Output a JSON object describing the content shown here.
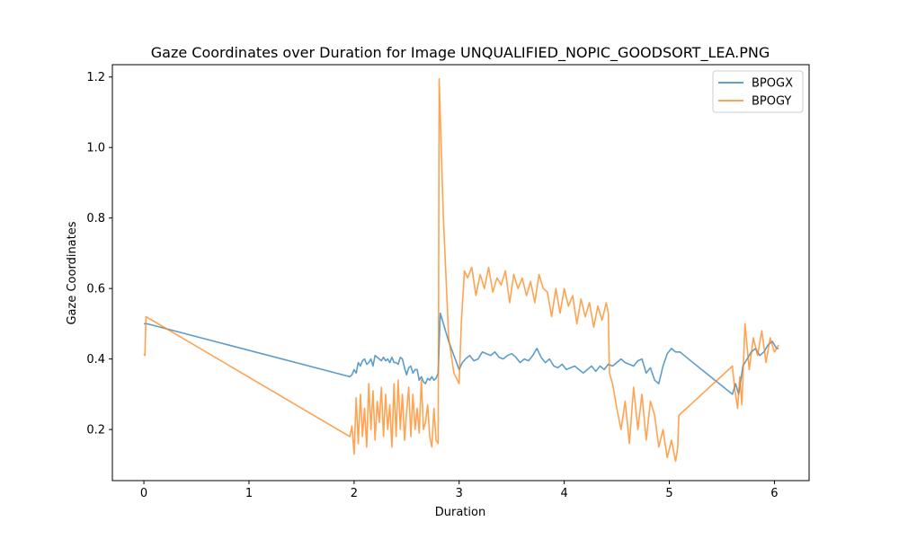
{
  "chart_data": {
    "type": "line",
    "title": "Gaze Coordinates over Duration for Image UNQUALIFIED_NOPIC_GOODSORT_LEA.PNG",
    "xlabel": "Duration",
    "ylabel": "Gaze Coordinates",
    "xlim": [
      -0.3,
      6.33
    ],
    "ylim": [
      0.055,
      1.235
    ],
    "xticks": [
      0,
      1,
      2,
      3,
      4,
      5,
      6
    ],
    "yticks": [
      0.2,
      0.4,
      0.6,
      0.8,
      1.0,
      1.2
    ],
    "xtick_labels": [
      "0",
      "1",
      "2",
      "3",
      "4",
      "5",
      "6"
    ],
    "ytick_labels": [
      "0.2",
      "0.4",
      "0.6",
      "0.8",
      "1.0",
      "1.2"
    ],
    "grid": false,
    "legend": "top-right",
    "series": [
      {
        "name": "BPOGX",
        "color": "#1f77b4",
        "x": [
          0.0,
          0.03,
          1.96,
          1.98,
          2.0,
          2.02,
          2.04,
          2.06,
          2.08,
          2.1,
          2.12,
          2.14,
          2.16,
          2.18,
          2.2,
          2.22,
          2.24,
          2.26,
          2.28,
          2.3,
          2.32,
          2.34,
          2.36,
          2.38,
          2.4,
          2.42,
          2.44,
          2.46,
          2.48,
          2.5,
          2.52,
          2.54,
          2.56,
          2.58,
          2.6,
          2.62,
          2.64,
          2.66,
          2.68,
          2.7,
          2.72,
          2.74,
          2.76,
          2.78,
          2.8,
          2.82,
          2.9,
          2.95,
          3.0,
          3.03,
          3.06,
          3.1,
          3.14,
          3.18,
          3.22,
          3.26,
          3.3,
          3.34,
          3.38,
          3.42,
          3.46,
          3.5,
          3.54,
          3.58,
          3.62,
          3.66,
          3.7,
          3.74,
          3.78,
          3.82,
          3.86,
          3.9,
          3.94,
          3.98,
          4.02,
          4.06,
          4.1,
          4.14,
          4.18,
          4.22,
          4.26,
          4.3,
          4.34,
          4.38,
          4.42,
          4.46,
          4.5,
          4.54,
          4.58,
          4.62,
          4.66,
          4.7,
          4.74,
          4.78,
          4.82,
          4.86,
          4.9,
          4.94,
          4.98,
          5.02,
          5.06,
          5.1,
          5.6,
          5.63,
          5.66,
          5.7,
          5.74,
          5.78,
          5.82,
          5.86,
          5.9,
          5.94,
          5.98,
          6.02,
          6.04
        ],
        "values": [
          0.5,
          0.5,
          0.35,
          0.355,
          0.37,
          0.36,
          0.39,
          0.38,
          0.395,
          0.4,
          0.385,
          0.39,
          0.4,
          0.38,
          0.41,
          0.405,
          0.4,
          0.395,
          0.405,
          0.395,
          0.4,
          0.39,
          0.405,
          0.39,
          0.39,
          0.385,
          0.405,
          0.4,
          0.375,
          0.355,
          0.375,
          0.38,
          0.36,
          0.37,
          0.37,
          0.34,
          0.35,
          0.335,
          0.33,
          0.345,
          0.34,
          0.35,
          0.34,
          0.345,
          0.36,
          0.53,
          0.45,
          0.41,
          0.37,
          0.39,
          0.4,
          0.41,
          0.395,
          0.4,
          0.42,
          0.415,
          0.41,
          0.42,
          0.405,
          0.4,
          0.41,
          0.415,
          0.405,
          0.39,
          0.4,
          0.395,
          0.41,
          0.43,
          0.405,
          0.39,
          0.4,
          0.38,
          0.375,
          0.385,
          0.37,
          0.375,
          0.38,
          0.37,
          0.36,
          0.37,
          0.38,
          0.365,
          0.38,
          0.37,
          0.385,
          0.38,
          0.39,
          0.4,
          0.39,
          0.385,
          0.38,
          0.395,
          0.4,
          0.36,
          0.375,
          0.34,
          0.33,
          0.38,
          0.415,
          0.43,
          0.42,
          0.42,
          0.3,
          0.33,
          0.3,
          0.38,
          0.4,
          0.42,
          0.43,
          0.41,
          0.42,
          0.44,
          0.45,
          0.43,
          0.43
        ]
      },
      {
        "name": "BPOGY",
        "color": "#ff7f0e",
        "x": [
          0.0,
          0.01,
          0.02,
          1.96,
          1.98,
          2.0,
          2.02,
          2.04,
          2.06,
          2.08,
          2.1,
          2.12,
          2.14,
          2.16,
          2.18,
          2.2,
          2.22,
          2.24,
          2.26,
          2.28,
          2.3,
          2.32,
          2.34,
          2.36,
          2.38,
          2.4,
          2.42,
          2.44,
          2.46,
          2.48,
          2.5,
          2.52,
          2.54,
          2.56,
          2.58,
          2.6,
          2.62,
          2.64,
          2.66,
          2.68,
          2.7,
          2.72,
          2.74,
          2.76,
          2.78,
          2.8,
          2.81,
          2.85,
          2.9,
          2.95,
          3.0,
          3.02,
          3.05,
          3.08,
          3.12,
          3.16,
          3.2,
          3.24,
          3.28,
          3.32,
          3.36,
          3.4,
          3.44,
          3.48,
          3.52,
          3.56,
          3.6,
          3.64,
          3.68,
          3.72,
          3.76,
          3.8,
          3.84,
          3.88,
          3.92,
          3.96,
          4.0,
          4.04,
          4.08,
          4.12,
          4.16,
          4.2,
          4.24,
          4.28,
          4.32,
          4.36,
          4.4,
          4.42,
          4.43,
          4.46,
          4.5,
          4.54,
          4.58,
          4.62,
          4.66,
          4.7,
          4.74,
          4.78,
          4.82,
          4.86,
          4.9,
          4.94,
          4.98,
          5.02,
          5.06,
          5.08,
          5.09,
          5.6,
          5.62,
          5.65,
          5.67,
          5.69,
          5.72,
          5.76,
          5.8,
          5.84,
          5.88,
          5.92,
          5.96,
          6.0,
          6.04
        ],
        "values": [
          0.415,
          0.41,
          0.52,
          0.18,
          0.21,
          0.13,
          0.29,
          0.16,
          0.3,
          0.18,
          0.26,
          0.15,
          0.33,
          0.2,
          0.31,
          0.17,
          0.28,
          0.22,
          0.32,
          0.18,
          0.3,
          0.2,
          0.27,
          0.15,
          0.33,
          0.18,
          0.34,
          0.2,
          0.3,
          0.17,
          0.25,
          0.32,
          0.18,
          0.3,
          0.2,
          0.26,
          0.19,
          0.34,
          0.2,
          0.22,
          0.27,
          0.18,
          0.15,
          0.26,
          0.17,
          0.16,
          1.195,
          0.8,
          0.46,
          0.36,
          0.33,
          0.5,
          0.65,
          0.63,
          0.66,
          0.58,
          0.64,
          0.6,
          0.66,
          0.59,
          0.63,
          0.61,
          0.65,
          0.56,
          0.64,
          0.6,
          0.63,
          0.58,
          0.62,
          0.56,
          0.64,
          0.6,
          0.59,
          0.52,
          0.6,
          0.53,
          0.6,
          0.55,
          0.58,
          0.5,
          0.57,
          0.52,
          0.56,
          0.49,
          0.55,
          0.51,
          0.56,
          0.53,
          0.36,
          0.33,
          0.26,
          0.2,
          0.28,
          0.16,
          0.32,
          0.2,
          0.3,
          0.17,
          0.28,
          0.24,
          0.15,
          0.2,
          0.12,
          0.17,
          0.11,
          0.15,
          0.24,
          0.38,
          0.32,
          0.26,
          0.35,
          0.27,
          0.5,
          0.37,
          0.46,
          0.41,
          0.48,
          0.39,
          0.46,
          0.42,
          0.44
        ]
      }
    ]
  }
}
